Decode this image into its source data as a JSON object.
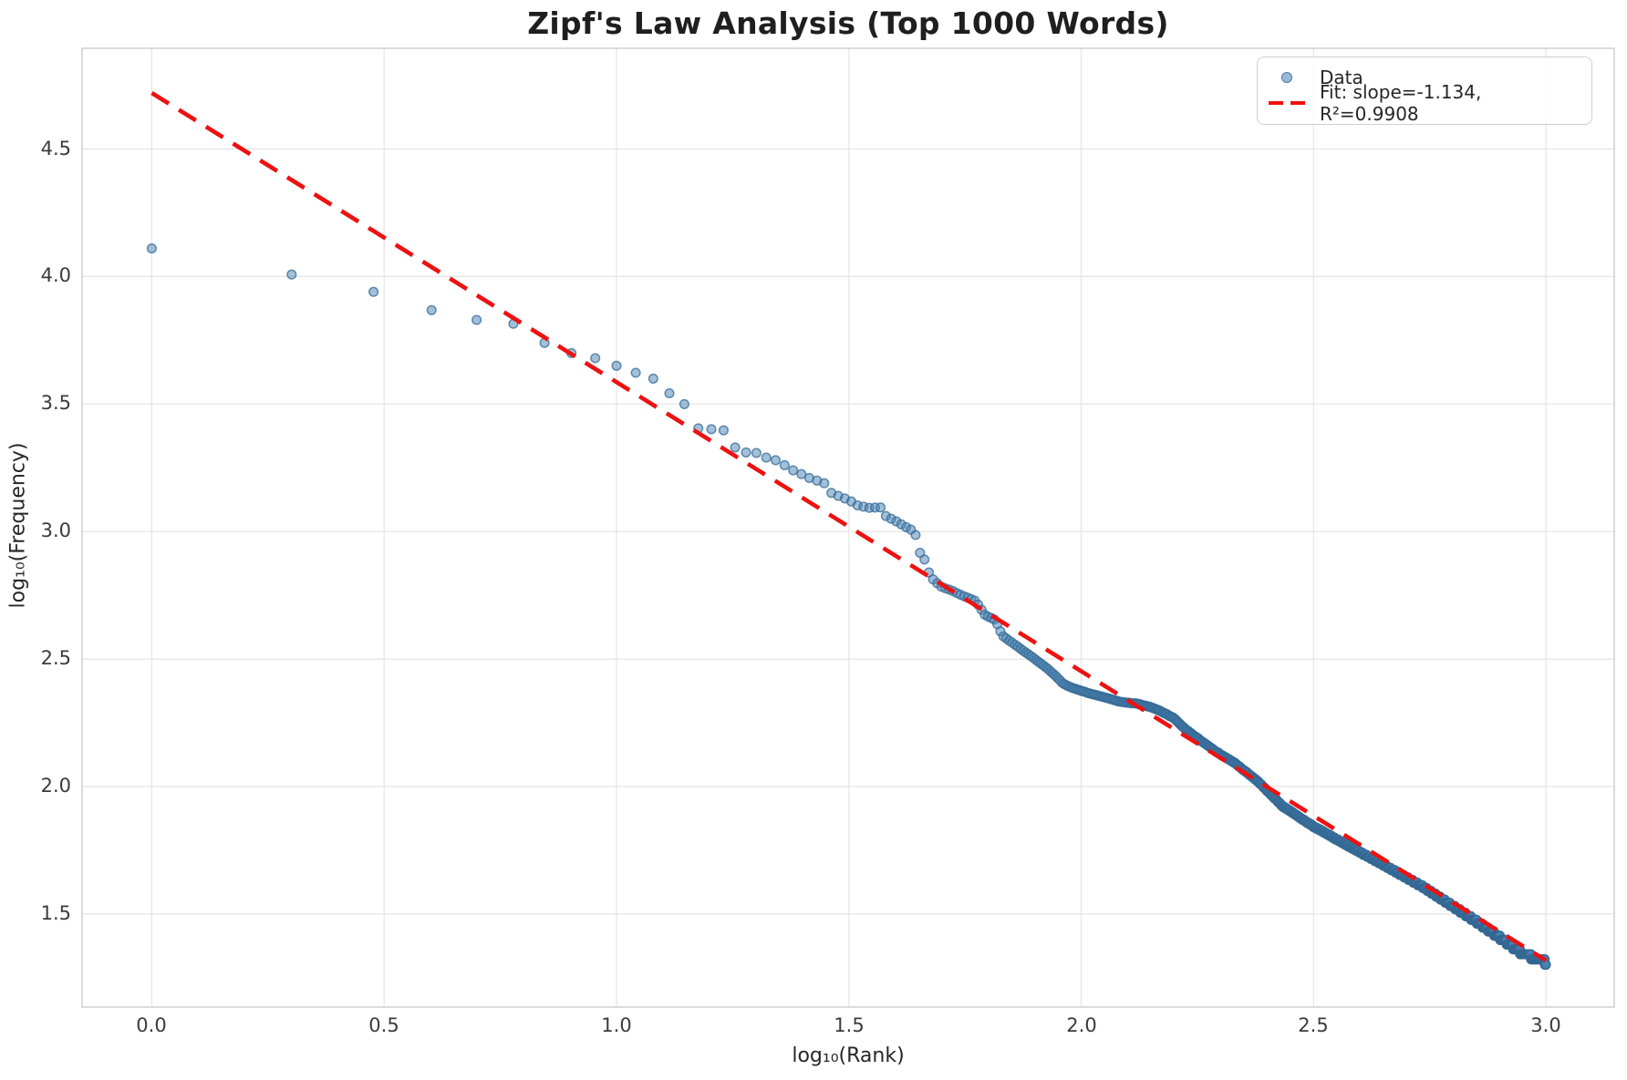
{
  "title": "Zipf's Law Analysis (Top 1000 Words)",
  "axes": {
    "xlabel": "log₁₀(Rank)",
    "ylabel": "log₁₀(Frequency)",
    "x_tick_values": [
      0.0,
      0.5,
      1.0,
      1.5,
      2.0,
      2.5,
      3.0
    ],
    "x_tick_labels": [
      "0.0",
      "0.5",
      "1.0",
      "1.5",
      "2.0",
      "2.5",
      "3.0"
    ],
    "y_tick_values": [
      1.5,
      2.0,
      2.5,
      3.0,
      3.5,
      4.0,
      4.5
    ],
    "y_tick_labels": [
      "1.5",
      "2.0",
      "2.5",
      "3.0",
      "3.5",
      "4.0",
      "4.5"
    ],
    "xlim": [
      -0.15,
      3.147
    ],
    "ylim": [
      1.135,
      4.895
    ],
    "grid": true
  },
  "legend": {
    "position": "upper right",
    "entries": [
      {
        "label": "Data",
        "marker": "scatter-dot"
      },
      {
        "label": "Fit: slope=-1.134, R²=0.9908",
        "marker": "red-dashed-line"
      }
    ]
  },
  "colors": {
    "scatter_fill": "rgba(70,130,180,0.5)",
    "scatter_edge": "rgba(54,106,148,0.75)",
    "fit_line": "#ee1111",
    "grid_line": "#e4e4e4",
    "spine": "#cccccc",
    "title_text": "#1f1f1f",
    "tick_text": "#3b3b3b"
  },
  "chart_data": {
    "type": "scatter",
    "title": "Zipf's Law Analysis (Top 1000 Words)",
    "xlabel": "log₁₀(Rank)",
    "ylabel": "log₁₀(Frequency)",
    "xlim": [
      -0.15,
      3.147
    ],
    "ylim": [
      1.135,
      4.895
    ],
    "grid": true,
    "legend_position": "upper right",
    "n_points": 1000,
    "x_definition": "x = log10(rank) for ranks 1..1000; y = log10(word frequency)",
    "marker_radius_px": 4.8,
    "series": [
      {
        "name": "Data",
        "type": "scatter",
        "anchor_points_log10": [
          [
            0.0,
            4.11
          ],
          [
            0.301,
            4.008
          ],
          [
            0.477,
            3.94
          ],
          [
            0.602,
            3.868
          ],
          [
            0.699,
            3.83
          ],
          [
            0.778,
            3.815
          ],
          [
            0.845,
            3.74
          ],
          [
            0.903,
            3.7
          ],
          [
            0.954,
            3.68
          ],
          [
            1.0,
            3.65
          ],
          [
            1.041,
            3.623
          ],
          [
            1.079,
            3.6
          ],
          [
            1.114,
            3.542
          ],
          [
            1.146,
            3.5
          ],
          [
            1.176,
            3.405
          ],
          [
            1.23,
            3.398
          ],
          [
            1.255,
            3.33
          ],
          [
            1.279,
            3.31
          ],
          [
            1.301,
            3.308
          ],
          [
            1.322,
            3.29
          ],
          [
            1.342,
            3.28
          ],
          [
            1.362,
            3.26
          ],
          [
            1.38,
            3.24
          ],
          [
            1.398,
            3.225
          ],
          [
            1.415,
            3.21
          ],
          [
            1.431,
            3.2
          ],
          [
            1.447,
            3.19
          ],
          [
            1.462,
            3.152
          ],
          [
            1.477,
            3.14
          ],
          [
            1.491,
            3.13
          ],
          [
            1.505,
            3.118
          ],
          [
            1.519,
            3.102
          ],
          [
            1.544,
            3.093
          ],
          [
            1.568,
            3.095
          ],
          [
            1.58,
            3.06
          ],
          [
            1.602,
            3.04
          ],
          [
            1.62,
            3.02
          ],
          [
            1.633,
            3.008
          ],
          [
            1.643,
            2.99
          ],
          [
            1.652,
            2.92
          ],
          [
            1.663,
            2.89
          ],
          [
            1.672,
            2.84
          ],
          [
            1.682,
            2.81
          ],
          [
            1.7,
            2.782
          ],
          [
            1.72,
            2.77
          ],
          [
            1.74,
            2.752
          ],
          [
            1.773,
            2.728
          ],
          [
            1.793,
            2.672
          ],
          [
            1.816,
            2.652
          ],
          [
            1.83,
            2.592
          ],
          [
            1.856,
            2.558
          ],
          [
            1.885,
            2.52
          ],
          [
            1.91,
            2.487
          ],
          [
            1.93,
            2.458
          ],
          [
            1.947,
            2.43
          ],
          [
            1.96,
            2.405
          ],
          [
            1.975,
            2.39
          ],
          [
            2.0,
            2.375
          ],
          [
            2.034,
            2.357
          ],
          [
            2.066,
            2.341
          ],
          [
            2.09,
            2.33
          ],
          [
            2.12,
            2.325
          ],
          [
            2.145,
            2.314
          ],
          [
            2.17,
            2.296
          ],
          [
            2.2,
            2.268
          ],
          [
            2.224,
            2.225
          ],
          [
            2.25,
            2.19
          ],
          [
            2.277,
            2.154
          ],
          [
            2.3,
            2.125
          ],
          [
            2.33,
            2.093
          ],
          [
            2.38,
            2.02
          ],
          [
            2.434,
            1.922
          ],
          [
            2.5,
            1.843
          ],
          [
            2.578,
            1.764
          ],
          [
            2.65,
            1.693
          ],
          [
            2.735,
            1.607
          ],
          [
            2.856,
            1.464
          ],
          [
            2.95,
            1.345
          ],
          [
            3.0,
            1.31
          ]
        ],
        "note": "1000 points at x=log10(rank), rank 1..1000; y interpolated through anchors and quantized to integer frequencies (staircase in tail)"
      },
      {
        "name": "Fit: slope=-1.134, R²=0.9908",
        "type": "dashed-line",
        "slope": -1.134,
        "r_squared": 0.9908,
        "endpoints": [
          [
            0.0,
            4.72
          ],
          [
            3.0,
            1.318
          ]
        ]
      }
    ]
  }
}
